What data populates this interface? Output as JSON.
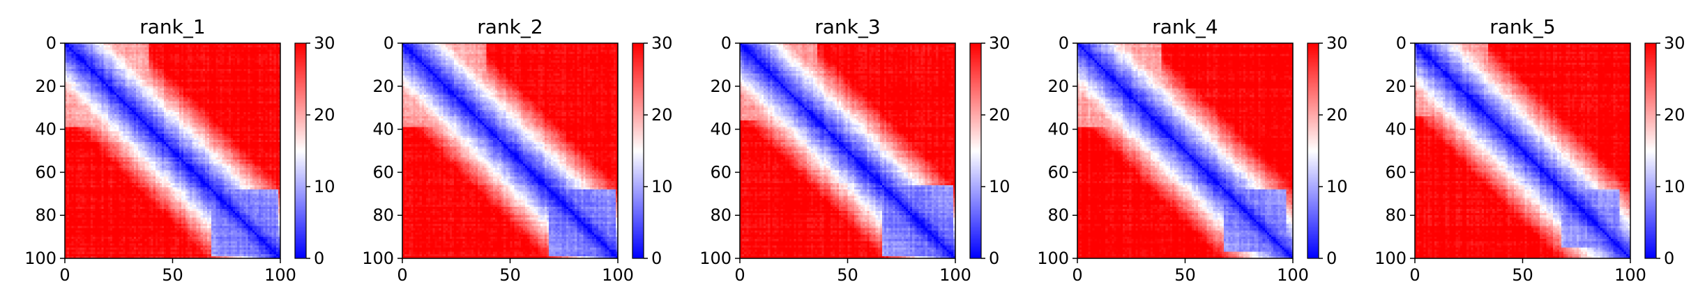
{
  "chart_data": [
    {
      "type": "heatmap",
      "title": "rank_1",
      "xlim": [
        0,
        100
      ],
      "ylim": [
        100,
        0
      ],
      "xticks": [
        0,
        50,
        100
      ],
      "yticks": [
        0,
        20,
        40,
        60,
        80,
        100
      ],
      "colorbar": {
        "min": 0,
        "max": 30,
        "ticks": [
          0,
          10,
          20,
          30
        ],
        "colors": [
          "#0000ff",
          "#ffffff",
          "#ff0000"
        ]
      },
      "blocks": [
        {
          "start": 68,
          "end": 98,
          "value": 6
        },
        {
          "start": 0,
          "end": 38,
          "value": 17
        }
      ]
    },
    {
      "type": "heatmap",
      "title": "rank_2",
      "xlim": [
        0,
        100
      ],
      "ylim": [
        100,
        0
      ],
      "xticks": [
        0,
        50,
        100
      ],
      "yticks": [
        0,
        20,
        40,
        60,
        80,
        100
      ],
      "colorbar": {
        "min": 0,
        "max": 30,
        "ticks": [
          0,
          10,
          20,
          30
        ],
        "colors": [
          "#0000ff",
          "#ffffff",
          "#ff0000"
        ]
      },
      "blocks": [
        {
          "start": 68,
          "end": 98,
          "value": 6
        },
        {
          "start": 0,
          "end": 38,
          "value": 17
        }
      ]
    },
    {
      "type": "heatmap",
      "title": "rank_3",
      "xlim": [
        0,
        100
      ],
      "ylim": [
        100,
        0
      ],
      "xticks": [
        0,
        50,
        100
      ],
      "yticks": [
        0,
        20,
        40,
        60,
        80,
        100
      ],
      "colorbar": {
        "min": 0,
        "max": 30,
        "ticks": [
          0,
          10,
          20,
          30
        ],
        "colors": [
          "#0000ff",
          "#ffffff",
          "#ff0000"
        ]
      },
      "blocks": [
        {
          "start": 66,
          "end": 98,
          "value": 6
        },
        {
          "start": 0,
          "end": 35,
          "value": 18
        }
      ]
    },
    {
      "type": "heatmap",
      "title": "rank_4",
      "xlim": [
        0,
        100
      ],
      "ylim": [
        100,
        0
      ],
      "xticks": [
        0,
        50,
        100
      ],
      "yticks": [
        0,
        20,
        40,
        60,
        80,
        100
      ],
      "colorbar": {
        "min": 0,
        "max": 30,
        "ticks": [
          0,
          10,
          20,
          30
        ],
        "colors": [
          "#0000ff",
          "#ffffff",
          "#ff0000"
        ]
      },
      "blocks": [
        {
          "start": 68,
          "end": 96,
          "value": 6
        },
        {
          "start": 0,
          "end": 38,
          "value": 17
        }
      ]
    },
    {
      "type": "heatmap",
      "title": "rank_5",
      "xlim": [
        0,
        100
      ],
      "ylim": [
        100,
        0
      ],
      "xticks": [
        0,
        50,
        100
      ],
      "yticks": [
        0,
        20,
        40,
        60,
        80,
        100
      ],
      "colorbar": {
        "min": 0,
        "max": 30,
        "ticks": [
          0,
          10,
          20,
          30
        ],
        "colors": [
          "#0000ff",
          "#ffffff",
          "#ff0000"
        ]
      },
      "blocks": [
        {
          "start": 68,
          "end": 94,
          "value": 7
        },
        {
          "start": 0,
          "end": 33,
          "value": 18
        }
      ]
    }
  ]
}
